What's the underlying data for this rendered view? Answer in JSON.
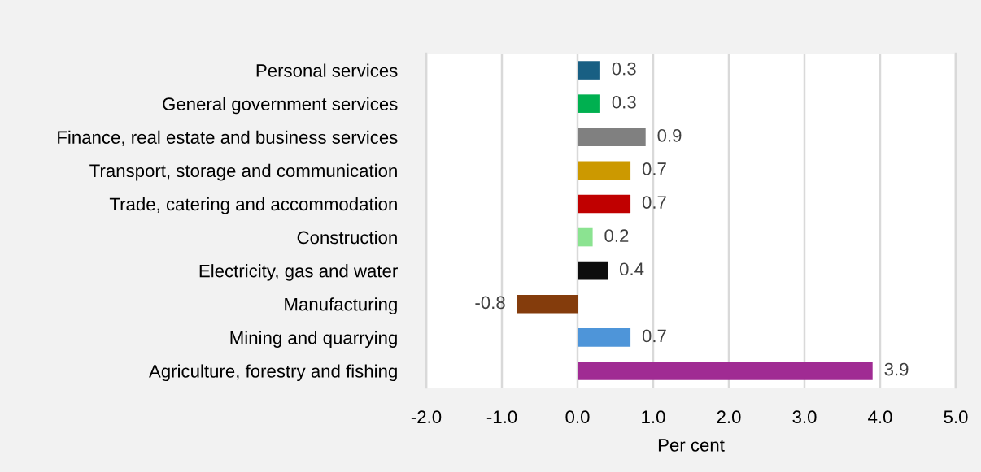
{
  "chart_data": {
    "type": "bar",
    "orientation": "horizontal",
    "xlabel": "Per cent",
    "categories": [
      "Personal services",
      "General government services",
      "Finance, real estate and business services",
      "Transport, storage and communication",
      "Trade, catering and accommodation",
      "Construction",
      "Electricity, gas and water",
      "Manufacturing",
      "Mining and quarrying",
      "Agriculture, forestry and fishing"
    ],
    "values": [
      0.3,
      0.3,
      0.9,
      0.7,
      0.7,
      0.2,
      0.4,
      -0.8,
      0.7,
      3.9
    ],
    "colors": [
      "#185f83",
      "#00b050",
      "#808080",
      "#cc9900",
      "#c00000",
      "#8be391",
      "#0d0d0d",
      "#843c0c",
      "#4e95d9",
      "#a02b93"
    ],
    "xlim": [
      -2.0,
      5.0
    ],
    "xticks": [
      {
        "value": -2.0,
        "label": "-2.0"
      },
      {
        "value": -1.0,
        "label": "-1.0"
      },
      {
        "value": 0.0,
        "label": "0.0"
      },
      {
        "value": 1.0,
        "label": "1.0"
      },
      {
        "value": 2.0,
        "label": "2.0"
      },
      {
        "value": 3.0,
        "label": "3.0"
      },
      {
        "value": 4.0,
        "label": "4.0"
      },
      {
        "value": 5.0,
        "label": "5.0"
      }
    ],
    "grid": "x",
    "data_labels": true,
    "legend": false
  }
}
